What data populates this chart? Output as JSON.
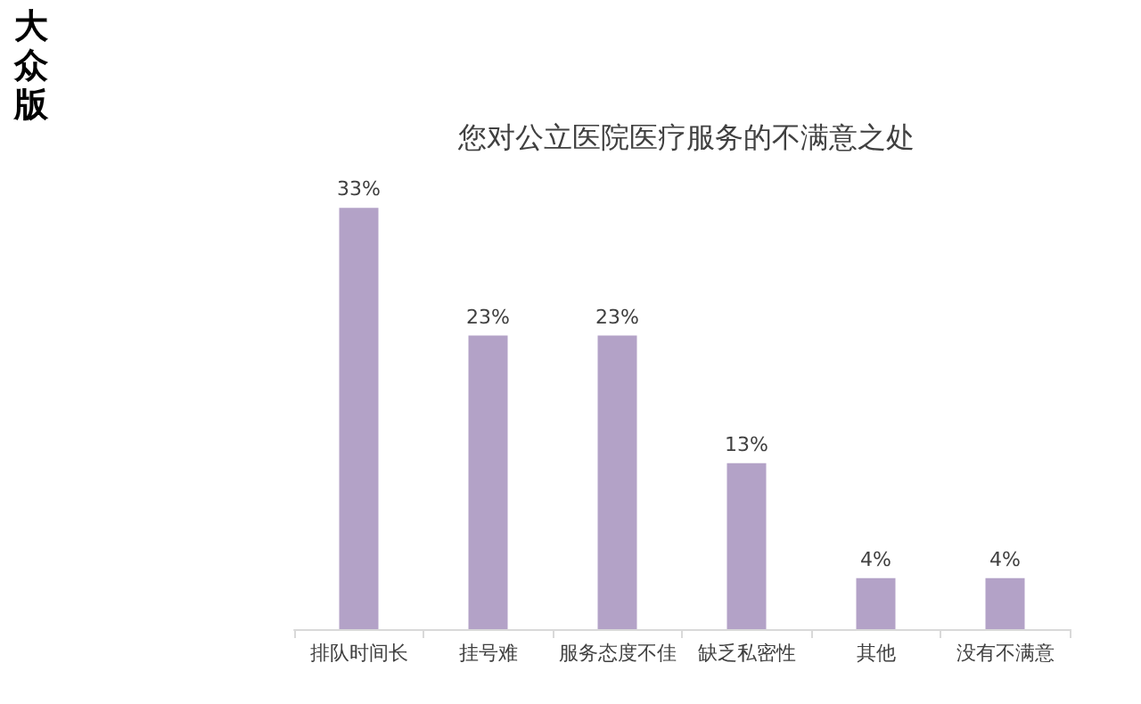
{
  "chart_data": {
    "type": "bar",
    "title": "您对公立医院医疗服务的不满意之处",
    "annotations": [
      "大众版"
    ],
    "categories": [
      "排队时间长",
      "挂号难",
      "服务态度不佳",
      "缺乏私密性",
      "其他",
      "没有不满意"
    ],
    "values": [
      33,
      23,
      23,
      13,
      4,
      4
    ],
    "value_labels": [
      "33%",
      "23%",
      "23%",
      "13%",
      "4%",
      "4%"
    ],
    "color": "#b3a2c7"
  }
}
